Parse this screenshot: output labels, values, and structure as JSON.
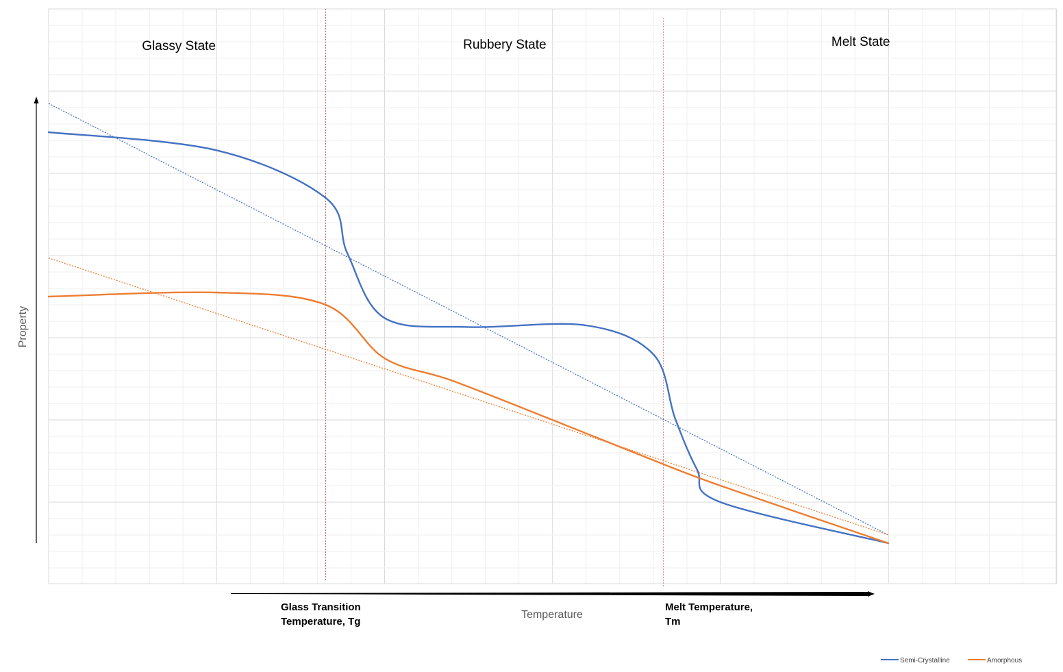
{
  "chart_data": {
    "type": "line",
    "title": "",
    "xlabel": "Temperature",
    "ylabel": "Property",
    "xlim": [
      0,
      30
    ],
    "ylim": [
      0,
      7
    ],
    "grid": true,
    "legend_position": "bottom-right",
    "regions": [
      {
        "label": "Glassy State",
        "x": 4
      },
      {
        "label": "Rubbery State",
        "x": 13.7
      },
      {
        "label": "Melt State",
        "x": 24.3
      }
    ],
    "annotations": [
      {
        "lines": [
          "Glass Transition",
          "Temperature, Tg"
        ],
        "x": 8.2
      },
      {
        "lines": [
          "Melt Temperature,",
          "Tm"
        ],
        "x": 18.3
      }
    ],
    "vertical_markers": [
      {
        "x": 8.25,
        "color": "#c0504d"
      },
      {
        "x": 18.3,
        "color": "#e87a8a"
      }
    ],
    "series": [
      {
        "name": "Semi-Crystalline",
        "color": "#4472c4",
        "points": [
          [
            0,
            5.5
          ],
          [
            5,
            5.28
          ],
          [
            8.25,
            4.7
          ],
          [
            8.9,
            4.02
          ],
          [
            10,
            3.24
          ],
          [
            12.5,
            3.13
          ],
          [
            16,
            3.15
          ],
          [
            18,
            2.8
          ],
          [
            18.65,
            2.02
          ],
          [
            19.3,
            1.4
          ],
          [
            20,
            1.0
          ],
          [
            25,
            0.5
          ]
        ]
      },
      {
        "name": "Amorphous",
        "color": "#ed7d31",
        "points": [
          [
            0,
            3.5
          ],
          [
            5,
            3.55
          ],
          [
            8.25,
            3.4
          ],
          [
            10,
            2.75
          ],
          [
            12,
            2.48
          ],
          [
            15,
            2.0
          ],
          [
            18,
            1.51
          ],
          [
            20,
            1.2
          ],
          [
            25,
            0.5
          ]
        ]
      }
    ],
    "trendlines": [
      {
        "color": "#4472c4",
        "points": [
          [
            0,
            5.85
          ],
          [
            25,
            0.6
          ]
        ]
      },
      {
        "color": "#ed7d31",
        "points": [
          [
            0,
            3.97
          ],
          [
            25,
            0.6
          ]
        ]
      }
    ]
  }
}
